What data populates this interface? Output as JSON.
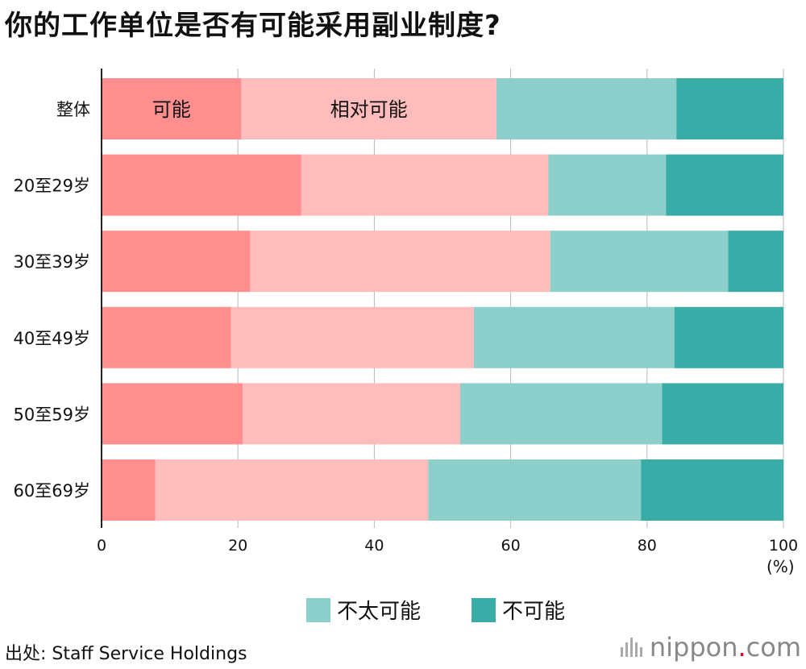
{
  "title": "你的工作单位是否有可能采用副业制度?",
  "unit_label": "(%)",
  "source": "出处:  Staff Service Holdings",
  "logo": {
    "name": "nippon",
    "dot": ".",
    "tld": "com"
  },
  "colors": {
    "possible": "#ff8f8f",
    "relatively_possible": "#ffbcbc",
    "not_very_possible": "#8dd0cb",
    "impossible": "#3aaca8"
  },
  "chart_data": {
    "type": "bar",
    "orientation": "horizontal",
    "stacked": true,
    "categories": [
      "整体",
      "20至29岁",
      "30至39岁",
      "40至49岁",
      "50至59岁",
      "60至69岁"
    ],
    "series": [
      {
        "name": "可能",
        "color": "#ff8f8f",
        "values": [
          20.5,
          29.3,
          21.8,
          19.0,
          20.7,
          7.9
        ]
      },
      {
        "name": "相对可能",
        "color": "#ffbcbc",
        "values": [
          37.4,
          36.2,
          44.0,
          35.6,
          31.9,
          40.0
        ]
      },
      {
        "name": "不太可能",
        "color": "#8dd0cb",
        "values": [
          26.4,
          17.3,
          26.1,
          29.4,
          29.6,
          31.2
        ]
      },
      {
        "name": "不可能",
        "color": "#3aaca8",
        "values": [
          15.7,
          17.2,
          8.1,
          16.0,
          17.8,
          20.9
        ]
      }
    ],
    "in_bar_labels": {
      "category_index": 0,
      "series_indices": [
        0,
        1
      ]
    },
    "xlim": [
      0,
      100
    ],
    "xticks": [
      0,
      20,
      40,
      60,
      80,
      100
    ],
    "grid": true,
    "legend": {
      "position": "bottom-center",
      "items": [
        {
          "label": "不太可能",
          "series_index": 2
        },
        {
          "label": "不可能",
          "series_index": 3
        }
      ]
    }
  }
}
